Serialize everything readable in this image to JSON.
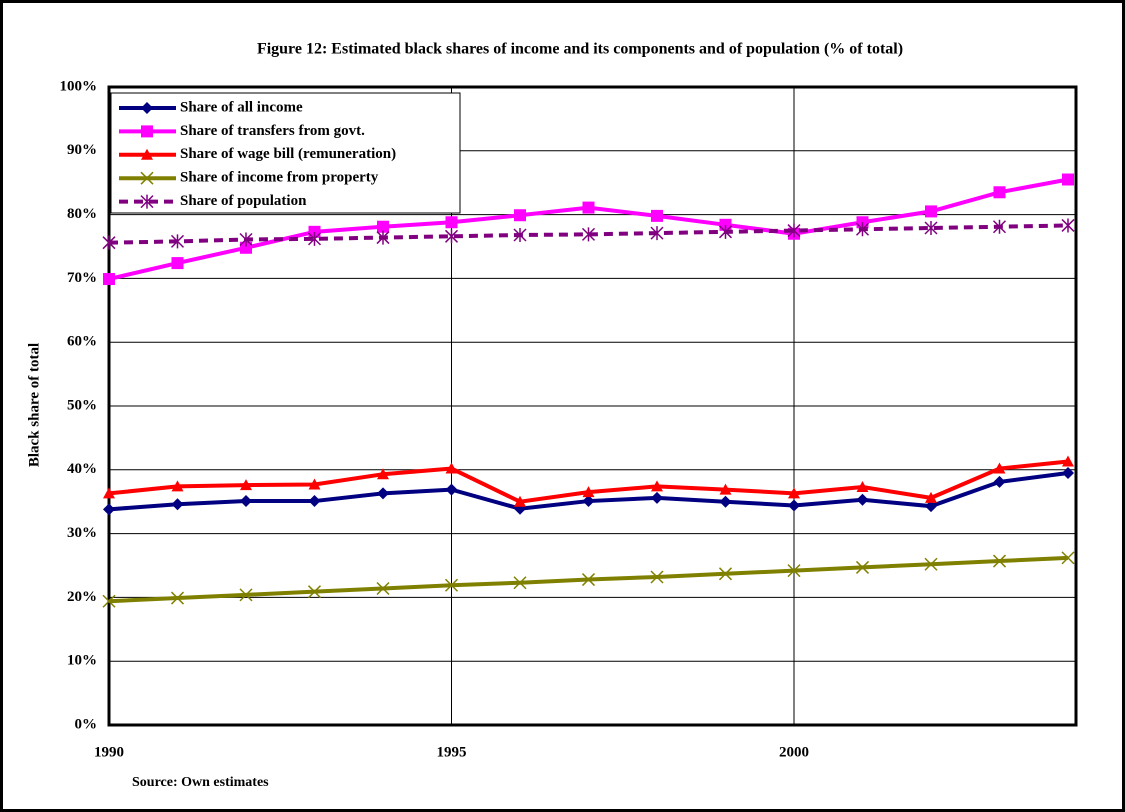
{
  "chart_data": {
    "type": "line",
    "title": "Figure 12: Estimated black shares of income and its components and of population (% of total)",
    "y_label": "Black share of total",
    "source": "Source: Own estimates",
    "x": [
      1990,
      1991,
      1992,
      1993,
      1994,
      1995,
      1996,
      1997,
      1998,
      1999,
      2000,
      2001,
      2002,
      2003,
      2004
    ],
    "xlim": [
      1990,
      2004
    ],
    "xticks": [
      1990,
      1995,
      2000
    ],
    "ylim": [
      0,
      100
    ],
    "yticks": [
      {
        "value": 0,
        "label": "0%"
      },
      {
        "value": 10,
        "label": "10%"
      },
      {
        "value": 20,
        "label": "20%"
      },
      {
        "value": 30,
        "label": "30%"
      },
      {
        "value": 40,
        "label": "40%"
      },
      {
        "value": 50,
        "label": "50%"
      },
      {
        "value": 60,
        "label": "60%"
      },
      {
        "value": 70,
        "label": "70%"
      },
      {
        "value": 80,
        "label": "80%"
      },
      {
        "value": 90,
        "label": "90%"
      },
      {
        "value": 100,
        "label": "100%"
      }
    ],
    "grid": true,
    "legend": "top-left",
    "series": [
      {
        "name": "Share of all income",
        "color": "#000080",
        "marker": "diamond",
        "linestyle": "solid",
        "values": [
          33.8,
          34.6,
          35.1,
          35.1,
          36.3,
          36.9,
          33.9,
          35.1,
          35.6,
          35.0,
          34.4,
          35.3,
          34.3,
          38.1,
          39.5
        ]
      },
      {
        "name": "Share of transfers from govt.",
        "color": "#ff00ff",
        "marker": "square",
        "linestyle": "solid",
        "values": [
          69.9,
          72.4,
          74.8,
          77.3,
          78.1,
          78.8,
          79.9,
          81.1,
          79.8,
          78.4,
          77.0,
          78.8,
          80.5,
          83.5,
          85.5
        ]
      },
      {
        "name": "Share of wage bill (remuneration)",
        "color": "#ff0000",
        "marker": "triangle",
        "linestyle": "solid",
        "values": [
          36.3,
          37.4,
          37.6,
          37.7,
          39.3,
          40.2,
          35.0,
          36.5,
          37.4,
          36.9,
          36.3,
          37.3,
          35.6,
          40.2,
          41.3
        ]
      },
      {
        "name": "Share of income from property",
        "color": "#808000",
        "marker": "x",
        "linestyle": "solid",
        "values": [
          19.4,
          19.9,
          20.4,
          20.9,
          21.4,
          21.9,
          22.3,
          22.8,
          23.2,
          23.7,
          24.2,
          24.7,
          25.2,
          25.7,
          26.2
        ]
      },
      {
        "name": "Share of population",
        "color": "#800080",
        "marker": "asterisk",
        "linestyle": "dashed",
        "values": [
          75.6,
          75.8,
          76.1,
          76.2,
          76.4,
          76.6,
          76.8,
          76.9,
          77.1,
          77.3,
          77.5,
          77.7,
          77.9,
          78.1,
          78.3
        ]
      }
    ]
  }
}
